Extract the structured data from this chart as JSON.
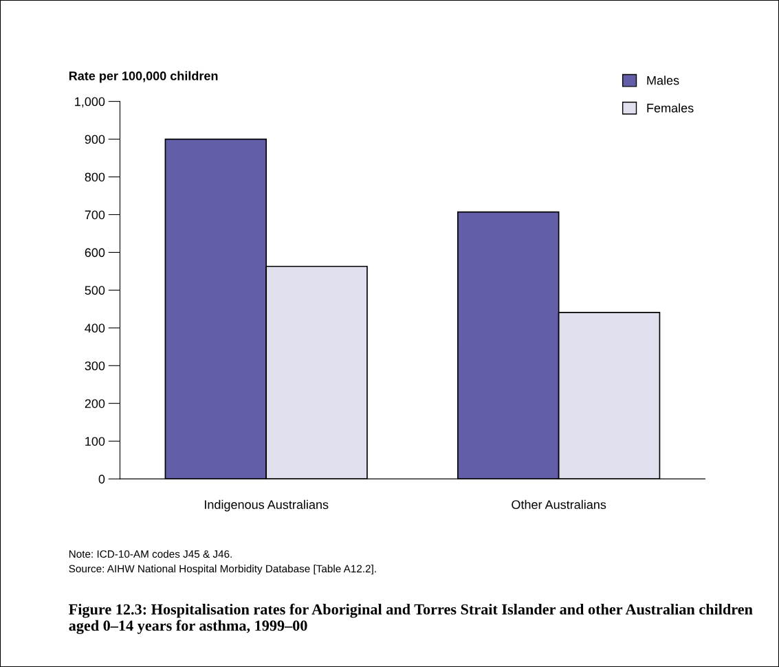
{
  "chart_data": {
    "type": "bar",
    "title": "Figure 12.3: Hospitalisation rates for Aboriginal and Torres Strait Islander and other Australian children aged 0–14 years for asthma, 1999–00",
    "ylabel": "Rate per 100,000 children",
    "categories": [
      "Indigenous Australians",
      "Other Australians"
    ],
    "series": [
      {
        "name": "Males",
        "color": "#635ea8",
        "values": [
          900,
          707
        ]
      },
      {
        "name": "Females",
        "color": "#e0dfee",
        "values": [
          563,
          441
        ]
      }
    ],
    "ylim": [
      0,
      1000
    ],
    "yticks": [
      0,
      100,
      200,
      300,
      400,
      500,
      600,
      700,
      800,
      900,
      {
        "value": 1000,
        "label": "1,000"
      }
    ],
    "grid": false,
    "legend": "top right",
    "annotations": [
      "Note: ICD-10-AM codes J45 & J46.",
      "Source: AIHW National Hospital Morbidity Database [Table A12.2]."
    ]
  }
}
